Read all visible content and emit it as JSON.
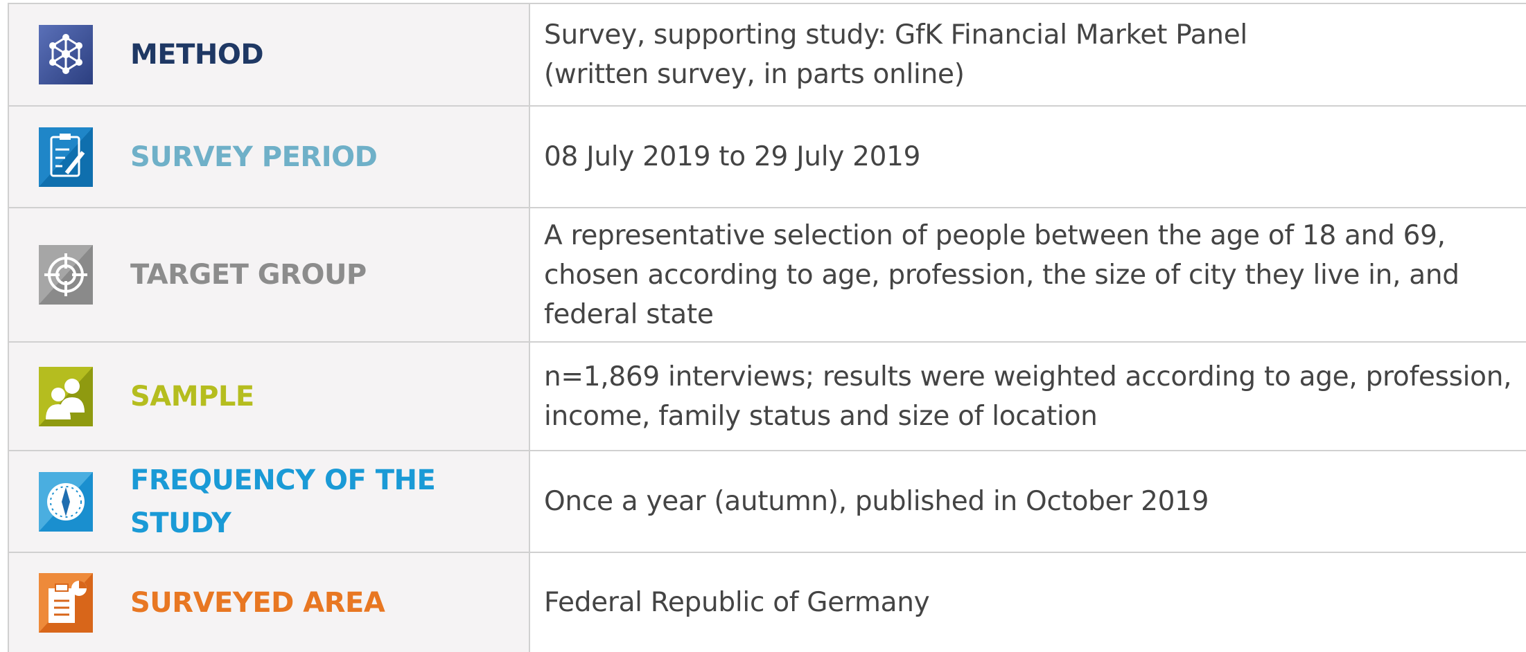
{
  "table": {
    "rows": [
      {
        "label": "METHOD",
        "lines": [
          "Survey, supporting study: GfK Financial Market Panel",
          "(written survey, in parts online)"
        ]
      },
      {
        "label": "SURVEY PERIOD",
        "lines": [
          "08 July 2019 to 29 July 2019"
        ]
      },
      {
        "label": "TARGET GROUP",
        "lines": [
          "A representative selection of people between the age of 18 and 69,",
          "chosen according to age, profession, the size of city they live in, and",
          "federal state"
        ]
      },
      {
        "label": "SAMPLE",
        "lines": [
          "n=1,869 interviews; results were weighted according to age, profession,",
          "income, family status and size of location"
        ]
      },
      {
        "label": "FREQUENCY OF THE STUDY",
        "lines": [
          "Once a year (autumn), published in October 2019"
        ]
      },
      {
        "label": "SURVEYED AREA",
        "lines": [
          "Federal Republic of Germany"
        ]
      }
    ]
  }
}
